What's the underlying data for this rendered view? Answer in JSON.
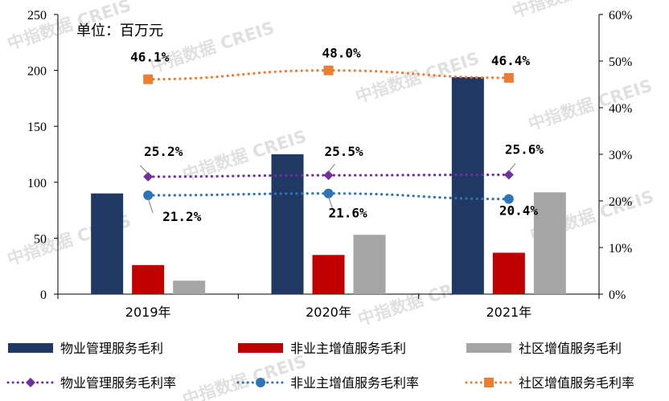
{
  "chart_data": {
    "type": "bar+line",
    "unit_label": "单位：百万元",
    "categories": [
      "2019年",
      "2020年",
      "2021年"
    ],
    "left_axis": {
      "min": 0,
      "max": 250,
      "ticks": [
        "0",
        "50",
        "100",
        "150",
        "200",
        "250"
      ]
    },
    "right_axis": {
      "min": 0,
      "max": 60,
      "ticks": [
        "0%",
        "10%",
        "20%",
        "30%",
        "40%",
        "50%",
        "60%"
      ]
    },
    "bar_series": [
      {
        "name": "物业管理服务毛利",
        "color": "#1f3864",
        "values": [
          90,
          125,
          194
        ]
      },
      {
        "name": "非业主增值服务毛利",
        "color": "#c00000",
        "values": [
          26,
          35,
          37
        ]
      },
      {
        "name": "社区增值服务毛利",
        "color": "#a5a5a5",
        "values": [
          12,
          53,
          91
        ]
      }
    ],
    "line_series": [
      {
        "name": "物业管理服务毛利率",
        "color": "#7030a0",
        "marker": "diamond",
        "values": [
          25.2,
          25.5,
          25.6
        ],
        "labels": [
          "25.2%",
          "25.5%",
          "25.6%"
        ]
      },
      {
        "name": "非业主增值服务毛利率",
        "color": "#2e75b6",
        "marker": "circle",
        "values": [
          21.2,
          21.6,
          20.4
        ],
        "labels": [
          "21.2%",
          "21.6%",
          "20.4%"
        ]
      },
      {
        "name": "社区增值服务毛利率",
        "color": "#ed7d31",
        "marker": "square",
        "values": [
          46.1,
          48.0,
          46.4
        ],
        "labels": [
          "46.1%",
          "48.0%",
          "46.4%"
        ]
      }
    ],
    "watermark": "中指数据 CREIS"
  }
}
